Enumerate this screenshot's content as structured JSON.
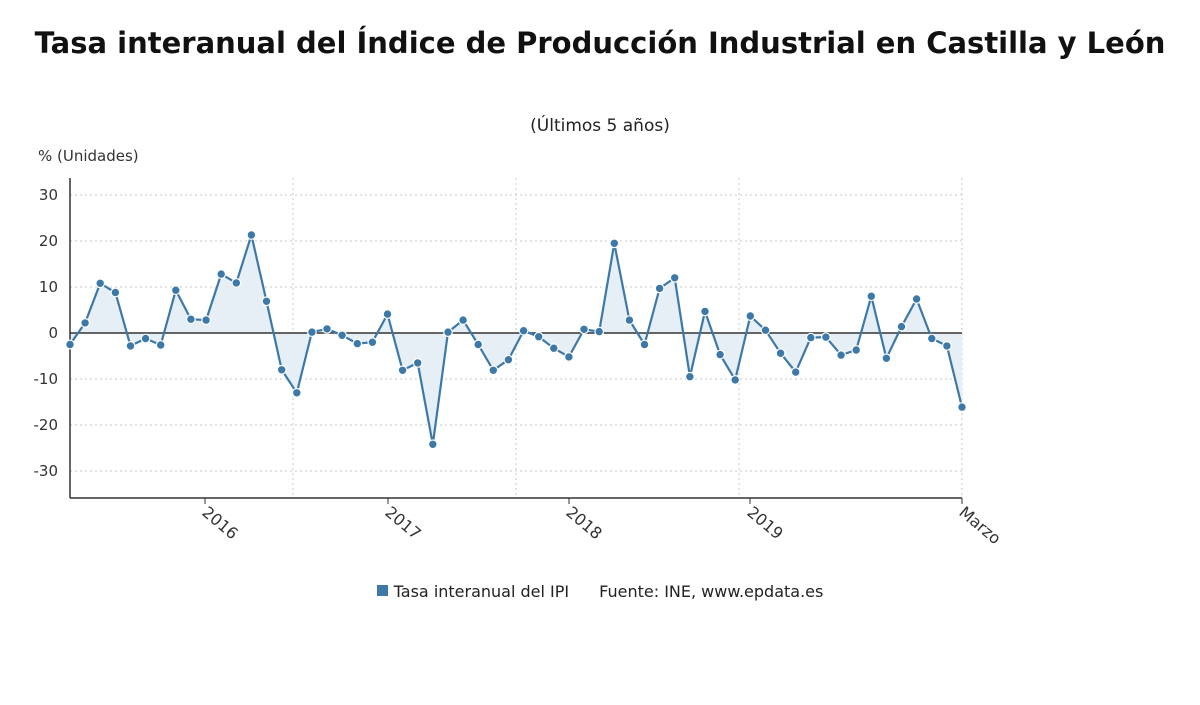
{
  "chart_data": {
    "type": "line",
    "title": "Tasa interanual del Índice de Producción Industrial en Castilla y León",
    "subtitle": "(Últimos 5 años)",
    "ylabel": "% (Unidades)",
    "source": "Fuente: INE, www.epdata.es",
    "ylim": [
      -36,
      34
    ],
    "yticks": [
      30,
      20,
      10,
      0,
      -10,
      -20,
      -30
    ],
    "xticks": [
      "2016",
      "2017",
      "2018",
      "2019",
      "Marzo"
    ],
    "grid": true,
    "legend_position": "bottom",
    "line_color": "#3d79a8",
    "fill_color": "#e6eef6",
    "series": [
      {
        "name": "Tasa interanual del IPI",
        "values": [
          -2.5,
          2.2,
          10.8,
          8.8,
          -2.8,
          -1.2,
          -2.6,
          9.3,
          3.0,
          2.8,
          12.8,
          10.9,
          21.3,
          6.9,
          -8.0,
          -13.0,
          0.2,
          0.9,
          -0.5,
          -2.3,
          -2.0,
          4.1,
          -8.1,
          -6.5,
          -24.2,
          0.2,
          2.8,
          -2.5,
          -8.1,
          -5.8,
          0.5,
          -0.8,
          -3.3,
          -5.2,
          0.8,
          0.3,
          19.5,
          2.8,
          -2.5,
          9.7,
          12.0,
          -9.5,
          4.7,
          -4.7,
          -10.2,
          3.7,
          0.6,
          -4.4,
          -8.5,
          -1.0,
          -0.9,
          -4.8,
          -3.7,
          8.0,
          -5.5,
          1.4,
          7.4,
          -1.2,
          -2.8,
          -16.1
        ]
      }
    ]
  }
}
